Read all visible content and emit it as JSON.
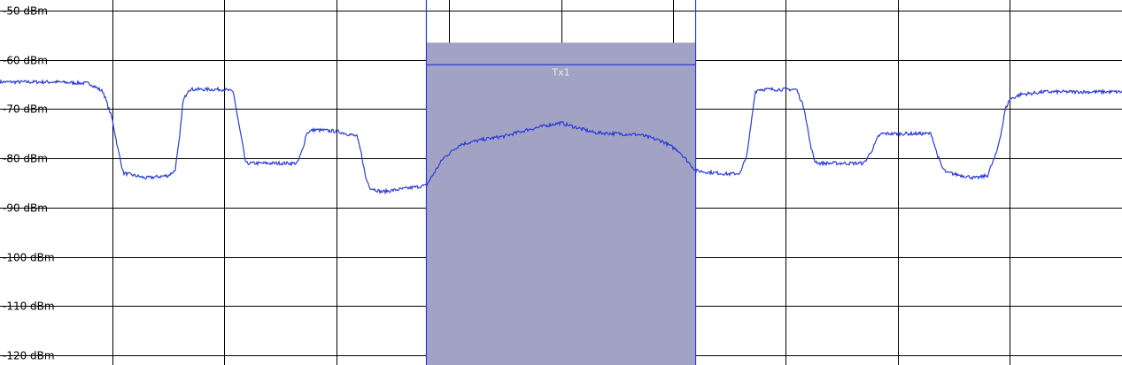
{
  "chart_data": {
    "type": "line",
    "xlabel": "",
    "ylabel": "",
    "grid": true,
    "xlim": [
      0,
      10
    ],
    "ylim": [
      -120,
      -50
    ],
    "y_ticks": [
      {
        "value": -50,
        "label": "-50 dBm"
      },
      {
        "value": -60,
        "label": "-60 dBm"
      },
      {
        "value": -70,
        "label": "-70 dBm"
      },
      {
        "value": -80,
        "label": "-80 dBm"
      },
      {
        "value": -90,
        "label": "-90 dBm"
      },
      {
        "value": -100,
        "label": "-100 dBm"
      },
      {
        "value": -110,
        "label": "-110 dBm"
      },
      {
        "value": -120,
        "label": "-120 dBm"
      }
    ],
    "x_gridlines": [
      1,
      2,
      3,
      4,
      5,
      6,
      7,
      8,
      9
    ],
    "channel": {
      "label": "Tx1",
      "x_start": 3.8,
      "x_end": 6.2,
      "level_dbm": -61,
      "top_dbm": -56.5,
      "marker_x": [
        4.0,
        5.0,
        6.0
      ],
      "fill_color": "#a2a3c4",
      "edge_color": "#2a3bd6",
      "label_color": "#e8e8f0"
    },
    "series": [
      {
        "color": "#2a3bd6",
        "x": [
          0.0,
          0.5,
          0.8,
          0.92,
          1.0,
          1.05,
          1.1,
          1.3,
          1.5,
          1.56,
          1.6,
          1.63,
          1.68,
          2.0,
          2.08,
          2.12,
          2.16,
          2.19,
          2.25,
          2.5,
          2.65,
          2.7,
          2.73,
          2.76,
          2.8,
          3.0,
          3.18,
          3.22,
          3.26,
          3.3,
          3.4,
          3.6,
          3.8,
          3.95,
          4.1,
          4.3,
          4.5,
          4.7,
          4.9,
          5.0,
          5.1,
          5.3,
          5.5,
          5.7,
          5.9,
          6.05,
          6.2,
          6.3,
          6.5,
          6.6,
          6.66,
          6.7,
          6.73,
          6.76,
          6.8,
          7.1,
          7.17,
          7.22,
          7.26,
          7.3,
          7.5,
          7.7,
          7.78,
          7.83,
          7.86,
          7.9,
          8.3,
          8.35,
          8.4,
          8.44,
          8.48,
          8.5,
          8.7,
          8.8,
          8.88,
          8.93,
          8.96,
          9.0,
          9.1,
          9.2,
          9.3,
          9.5,
          10.0
        ],
        "y": [
          -64.5,
          -64.5,
          -64.8,
          -66.5,
          -72,
          -78,
          -83,
          -84,
          -83.5,
          -82.5,
          -76,
          -68.5,
          -66,
          -66,
          -66.5,
          -72,
          -77,
          -81,
          -81,
          -81,
          -81,
          -78,
          -75,
          -74.5,
          -74.2,
          -74.5,
          -75.5,
          -79,
          -84,
          -86,
          -86.8,
          -86.2,
          -85.5,
          -80,
          -77.2,
          -76.2,
          -75.5,
          -74.2,
          -73.2,
          -72.8,
          -73.5,
          -74.8,
          -75,
          -75.2,
          -76.5,
          -78.5,
          -82.5,
          -82.8,
          -83.2,
          -83,
          -79,
          -72,
          -66.5,
          -66,
          -66,
          -66,
          -70,
          -77,
          -80.5,
          -81,
          -81,
          -81,
          -78,
          -75.5,
          -75,
          -75,
          -75,
          -79,
          -82,
          -83,
          -83,
          -83.2,
          -84,
          -83.5,
          -79,
          -74,
          -70,
          -68,
          -67,
          -66.8,
          -66.5,
          -66.5,
          -66.5
        ]
      }
    ]
  }
}
